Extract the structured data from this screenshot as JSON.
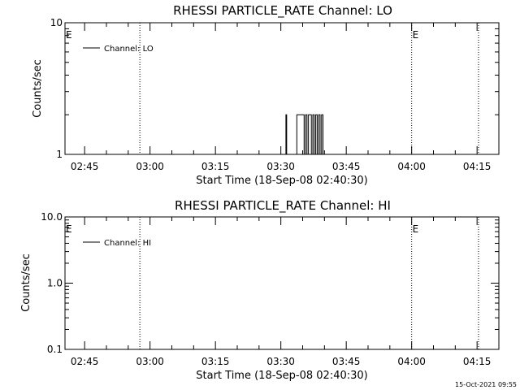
{
  "stamp": "15-Oct-2021 09:55",
  "chart_data": [
    {
      "type": "line",
      "title": "RHESSI PARTICLE_RATE Channel: LO",
      "xlabel": "Start Time (18-Sep-08 02:40:30)",
      "ylabel": "Counts/sec",
      "y_scale": "log",
      "ylim": [
        1,
        10
      ],
      "y_ticks": [
        {
          "value": 1,
          "label": "1"
        },
        {
          "value": 10,
          "label": "10"
        }
      ],
      "xlim": [
        "02:40:30",
        "04:20:00"
      ],
      "x_ticks": [
        "02:45",
        "03:00",
        "03:15",
        "03:30",
        "03:45",
        "04:00",
        "04:15"
      ],
      "vlines": [
        "02:57:40",
        "04:00:00",
        "04:15:20"
      ],
      "markers": [
        {
          "text": "E",
          "x": "02:40:30"
        },
        {
          "text": "E",
          "x": "04:00:00"
        }
      ],
      "legend": {
        "placement": "top-left",
        "label": "Channel: LO"
      },
      "grid": false,
      "series": [
        {
          "name": "Channel: LO",
          "points": [
            [
              "03:31:00",
              1
            ],
            [
              "03:31:10",
              2
            ],
            [
              "03:31:20",
              1
            ],
            [
              "03:33:00",
              1
            ],
            [
              "03:33:20",
              1
            ],
            [
              "03:33:40",
              2
            ],
            [
              "03:35:00",
              2
            ],
            [
              "03:35:20",
              1
            ],
            [
              "03:35:40",
              2
            ],
            [
              "03:36:00",
              1
            ],
            [
              "03:36:20",
              2
            ],
            [
              "03:36:40",
              2
            ],
            [
              "03:37:00",
              1
            ],
            [
              "03:37:20",
              2
            ],
            [
              "03:37:40",
              1
            ],
            [
              "03:38:00",
              2
            ],
            [
              "03:38:20",
              1
            ],
            [
              "03:38:40",
              2
            ],
            [
              "03:39:00",
              1
            ],
            [
              "03:39:20",
              2
            ],
            [
              "03:39:40",
              1
            ],
            [
              "03:40:00",
              1
            ]
          ]
        }
      ]
    },
    {
      "type": "line",
      "title": "RHESSI PARTICLE_RATE Channel: HI",
      "xlabel": "Start Time (18-Sep-08 02:40:30)",
      "ylabel": "Counts/sec",
      "y_scale": "log",
      "ylim": [
        0.1,
        10
      ],
      "y_ticks": [
        {
          "value": 0.1,
          "label": "0.1"
        },
        {
          "value": 1,
          "label": "1.0"
        },
        {
          "value": 10,
          "label": "10.0"
        }
      ],
      "xlim": [
        "02:40:30",
        "04:20:00"
      ],
      "x_ticks": [
        "02:45",
        "03:00",
        "03:15",
        "03:30",
        "03:45",
        "04:00",
        "04:15"
      ],
      "vlines": [
        "02:57:40",
        "04:00:00",
        "04:15:20"
      ],
      "markers": [
        {
          "text": "E",
          "x": "02:40:30"
        },
        {
          "text": "E",
          "x": "04:00:00"
        }
      ],
      "legend": {
        "placement": "top-left",
        "label": "Channel: HI"
      },
      "grid": false,
      "series": [
        {
          "name": "Channel: HI",
          "points": []
        }
      ]
    }
  ]
}
